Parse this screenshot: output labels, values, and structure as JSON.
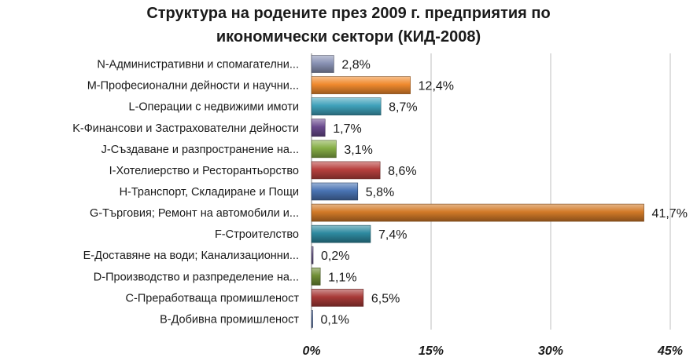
{
  "title_lines": [
    "Структура на родените през 2009 г. предприятия по",
    "икономически сектори (КИД-2008)"
  ],
  "chart_data": {
    "type": "bar",
    "orientation": "horizontal",
    "title": "Структура на родените през 2009 г. предприятия по икономически сектори (КИД-2008)",
    "categories": [
      "N-Административни и спомагателни...",
      "M-Професионални дейности и научни...",
      "L-Операции с недвижими имоти",
      "K-Финансови и Застрахователни дейности",
      "J-Създаване и разпространение на...",
      "I-Хотелиерство и Ресторантьорство",
      "H-Транспорт, Складиране и Пощи",
      "G-Търговия; Ремонт на автомобили и...",
      "F-Строителство",
      "E-Доставяне на води; Канализационни...",
      "D-Производство и разпределение на...",
      "C-Преработваща промишленост",
      "B-Добивна промишленост"
    ],
    "values": [
      2.8,
      12.4,
      8.7,
      1.7,
      3.1,
      8.6,
      5.8,
      41.7,
      7.4,
      0.2,
      1.1,
      6.5,
      0.1
    ],
    "value_labels": [
      "2,8%",
      "12,4%",
      "8,7%",
      "1,7%",
      "3,1%",
      "8,6%",
      "5,8%",
      "41,7%",
      "7,4%",
      "0,2%",
      "1,1%",
      "6,5%",
      "0,1%"
    ],
    "bar_colors": [
      "#8a93b5",
      "#f08a2e",
      "#3fa1ba",
      "#6a4a8e",
      "#86ae45",
      "#b8403e",
      "#4a74b4",
      "#d27a28",
      "#2e8aa0",
      "#6a5a8a",
      "#6f8e35",
      "#a83a38",
      "#4e6a9e"
    ],
    "xlim": [
      0,
      45
    ],
    "xticks": [
      0,
      15,
      30,
      45
    ],
    "xtick_labels": [
      "0%",
      "15%",
      "30%",
      "45%"
    ],
    "grid": true,
    "legend": "none"
  }
}
